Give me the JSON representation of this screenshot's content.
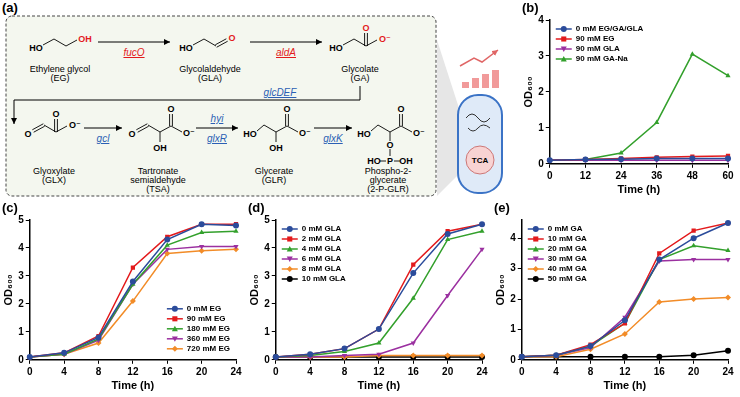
{
  "diagram": {
    "panel": "(a)",
    "nodes": [
      {
        "label": [
          "Ethylene glycol",
          "(EG)"
        ],
        "atoms": [
          {
            "text": "HO",
            "color": "#000000"
          },
          {
            "text": "OH",
            "color": "#e31a1c"
          }
        ]
      },
      {
        "label": [
          "Glycolaldehyde",
          "(GLA)"
        ],
        "atoms": [
          {
            "text": "HO",
            "color": "#000000"
          },
          {
            "text": "O",
            "color": "#e31a1c"
          }
        ]
      },
      {
        "label": [
          "Glycolate",
          "(GA)"
        ],
        "atoms": [
          {
            "text": "HO",
            "color": "#000000"
          },
          {
            "text": "O",
            "color": "#e31a1c"
          },
          {
            "text": "O⁻",
            "color": "#e31a1c"
          }
        ]
      },
      {
        "label": [
          "Glyoxylate",
          "(GLX)"
        ],
        "atoms": [
          {
            "text": "O",
            "color": "#000000"
          },
          {
            "text": "O",
            "color": "#000000"
          },
          {
            "text": "O⁻",
            "color": "#000000"
          }
        ]
      },
      {
        "label": [
          "Tartronate",
          "semialdehyde",
          "(TSA)"
        ],
        "atoms": [
          {
            "text": "O",
            "color": "#000000"
          },
          {
            "text": "OH",
            "color": "#000000"
          },
          {
            "text": "O",
            "color": "#000000"
          },
          {
            "text": "O⁻",
            "color": "#000000"
          }
        ]
      },
      {
        "label": [
          "Glycerate",
          "(GLR)"
        ],
        "atoms": [
          {
            "text": "HO",
            "color": "#000000"
          },
          {
            "text": "OH",
            "color": "#000000"
          },
          {
            "text": "O",
            "color": "#000000"
          },
          {
            "text": "O⁻",
            "color": "#000000"
          }
        ]
      },
      {
        "label": [
          "Phospho-2-",
          "glycerate",
          "(2-P-GLR)"
        ],
        "atoms": [
          {
            "text": "HO",
            "color": "#000000"
          },
          {
            "text": "O",
            "color": "#000000"
          },
          {
            "text": "P",
            "color": "#000000"
          },
          {
            "text": "HO",
            "color": "#000000"
          },
          {
            "text": "OH",
            "color": "#000000"
          },
          {
            "text": "O",
            "color": "#000000"
          },
          {
            "text": "O⁻",
            "color": "#000000"
          }
        ]
      }
    ],
    "enzymes": [
      {
        "text": "fucO",
        "color": "#e31a1c"
      },
      {
        "text": "aldA",
        "color": "#e31a1c"
      },
      {
        "text": "glcDEF",
        "color": "#2b5fb4"
      },
      {
        "text": "gcl",
        "color": "#2b5fb4"
      },
      {
        "text": "hyi",
        "color": "#2b5fb4"
      },
      {
        "text": "glxR",
        "color": "#2b5fb4"
      },
      {
        "text": "glxK",
        "color": "#2b5fb4"
      }
    ],
    "cell_label": "TCA"
  },
  "chart_data": [
    {
      "panel": "(b)",
      "type": "line",
      "x_label": "Time (h)",
      "y_label": "OD₆₀₀",
      "x": [
        0,
        12,
        24,
        36,
        48,
        60
      ],
      "xlim": [
        0,
        60
      ],
      "xticks": [
        0,
        12,
        24,
        36,
        48,
        60
      ],
      "ylim": [
        0,
        4
      ],
      "yticks": [
        0,
        1,
        2,
        3,
        4
      ],
      "grid": false,
      "legend": "top-left",
      "series": [
        {
          "name": "0 mM EG/GA/GLA",
          "color": "#2b4c9b",
          "marker": "circle",
          "values": [
            0.1,
            0.12,
            0.13,
            0.15,
            0.15,
            0.15
          ]
        },
        {
          "name": "90 mM EG",
          "color": "#e31a1c",
          "marker": "square",
          "values": [
            0.1,
            0.12,
            0.15,
            0.18,
            0.2,
            0.22
          ]
        },
        {
          "name": "90 mM GLA",
          "color": "#9b30a0",
          "marker": "triangle-down",
          "values": [
            0.1,
            0.1,
            0.1,
            0.1,
            0.1,
            0.1
          ]
        },
        {
          "name": "90 mM GA-Na",
          "color": "#33a02c",
          "marker": "triangle-up",
          "values": [
            0.1,
            0.12,
            0.3,
            1.15,
            3.05,
            2.45
          ]
        }
      ]
    },
    {
      "panel": "(c)",
      "type": "line",
      "x_label": "Time (h)",
      "y_label": "OD₆₀₀",
      "x": [
        0,
        4,
        8,
        12,
        16,
        20,
        24
      ],
      "xlim": [
        0,
        24
      ],
      "xticks": [
        0,
        4,
        8,
        12,
        16,
        20,
        24
      ],
      "ylim": [
        0,
        5
      ],
      "yticks": [
        0,
        1,
        2,
        3,
        4,
        5
      ],
      "grid": false,
      "legend": "bottom-right",
      "series": [
        {
          "name": "0 mM EG",
          "color": "#2b4c9b",
          "marker": "circle",
          "values": [
            0.1,
            0.25,
            0.8,
            2.8,
            4.3,
            4.85,
            4.8
          ]
        },
        {
          "name": "90 mM EG",
          "color": "#e31a1c",
          "marker": "square",
          "values": [
            0.1,
            0.25,
            0.85,
            3.3,
            4.4,
            4.85,
            4.85
          ]
        },
        {
          "name": "180 mM EG",
          "color": "#33a02c",
          "marker": "triangle-up",
          "values": [
            0.1,
            0.2,
            0.75,
            2.7,
            4.1,
            4.55,
            4.6
          ]
        },
        {
          "name": "360 mM EG",
          "color": "#9b30a0",
          "marker": "triangle-down",
          "values": [
            0.1,
            0.2,
            0.7,
            2.7,
            3.95,
            4.05,
            4.05
          ]
        },
        {
          "name": "720 mM EG",
          "color": "#f28c28",
          "marker": "diamond",
          "values": [
            0.1,
            0.2,
            0.6,
            2.1,
            3.8,
            3.9,
            3.95
          ]
        }
      ]
    },
    {
      "panel": "(d)",
      "type": "line",
      "x_label": "Time (h)",
      "y_label": "OD₆₀₀",
      "x": [
        0,
        4,
        8,
        12,
        16,
        20,
        24
      ],
      "xlim": [
        0,
        24
      ],
      "xticks": [
        0,
        4,
        8,
        12,
        16,
        20,
        24
      ],
      "ylim": [
        0,
        5
      ],
      "yticks": [
        0,
        1,
        2,
        3,
        4,
        5
      ],
      "grid": false,
      "legend": "top-left",
      "series": [
        {
          "name": "0 mM GLA",
          "color": "#2b4c9b",
          "marker": "circle",
          "values": [
            0.1,
            0.2,
            0.4,
            1.1,
            3.1,
            4.5,
            4.85
          ]
        },
        {
          "name": "2 mM GLA",
          "color": "#e31a1c",
          "marker": "square",
          "values": [
            0.1,
            0.2,
            0.4,
            1.1,
            3.4,
            4.6,
            4.85
          ]
        },
        {
          "name": "4 mM GLA",
          "color": "#33a02c",
          "marker": "triangle-up",
          "values": [
            0.1,
            0.15,
            0.3,
            0.6,
            2.2,
            4.3,
            4.6
          ]
        },
        {
          "name": "6 mM GLA",
          "color": "#9b30a0",
          "marker": "triangle-down",
          "values": [
            0.1,
            0.1,
            0.15,
            0.2,
            0.6,
            2.3,
            3.95
          ]
        },
        {
          "name": "8 mM GLA",
          "color": "#f28c28",
          "marker": "diamond",
          "values": [
            0.1,
            0.1,
            0.1,
            0.15,
            0.15,
            0.15,
            0.15
          ]
        },
        {
          "name": "10 mM GLA",
          "color": "#000000",
          "marker": "circle",
          "values": [
            0.1,
            0.1,
            0.1,
            0.1,
            0.1,
            0.1,
            0.1
          ]
        }
      ]
    },
    {
      "panel": "(e)",
      "type": "line",
      "x_label": "Time (h)",
      "y_label": "OD₆₀₀",
      "x": [
        0,
        4,
        8,
        12,
        16,
        20,
        24
      ],
      "xlim": [
        0,
        24
      ],
      "xticks": [
        0,
        4,
        8,
        12,
        16,
        20,
        24
      ],
      "ylim": [
        0,
        4.6
      ],
      "yticks": [
        0,
        1,
        2,
        3,
        4
      ],
      "grid": false,
      "legend": "top-left",
      "series": [
        {
          "name": "0 mM GA",
          "color": "#2b4c9b",
          "marker": "circle",
          "values": [
            0.1,
            0.15,
            0.45,
            1.3,
            3.3,
            4.0,
            4.5
          ]
        },
        {
          "name": "10 mM GA",
          "color": "#e31a1c",
          "marker": "square",
          "values": [
            0.1,
            0.15,
            0.5,
            1.2,
            3.5,
            4.25,
            4.5
          ]
        },
        {
          "name": "20 mM GA",
          "color": "#33a02c",
          "marker": "triangle-up",
          "values": [
            0.1,
            0.15,
            0.45,
            1.2,
            3.3,
            3.75,
            3.6
          ]
        },
        {
          "name": "30 mM GA",
          "color": "#9b30a0",
          "marker": "triangle-down",
          "values": [
            0.1,
            0.15,
            0.4,
            1.4,
            3.25,
            3.3,
            3.3
          ]
        },
        {
          "name": "40 mM GA",
          "color": "#f28c28",
          "marker": "diamond",
          "values": [
            0.1,
            0.1,
            0.35,
            0.85,
            1.9,
            2.0,
            2.05
          ]
        },
        {
          "name": "50 mM GA",
          "color": "#000000",
          "marker": "circle",
          "values": [
            0.1,
            0.1,
            0.1,
            0.1,
            0.1,
            0.15,
            0.3
          ]
        }
      ]
    }
  ]
}
